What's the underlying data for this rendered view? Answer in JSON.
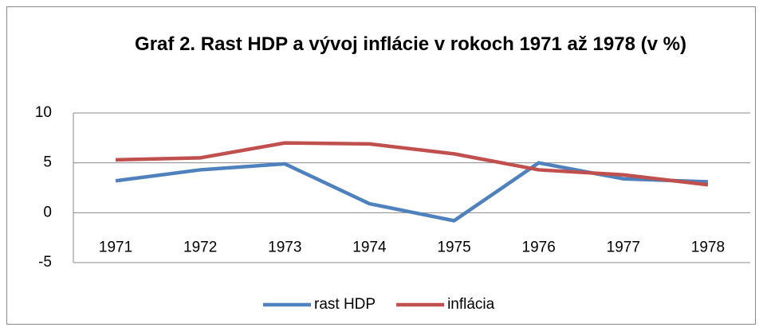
{
  "chart_data": {
    "type": "line",
    "title": "Graf 2. Rast HDP a vývoj inflácie v rokoch 1971 až 1978 (v %)",
    "categories": [
      "1971",
      "1972",
      "1973",
      "1974",
      "1975",
      "1976",
      "1977",
      "1978"
    ],
    "series": [
      {
        "name": "rast HDP",
        "color": "#4f81bd",
        "values": [
          3.2,
          4.3,
          4.9,
          0.9,
          -0.8,
          5.0,
          3.4,
          3.1
        ]
      },
      {
        "name": "inflácia",
        "color": "#c0504d",
        "values": [
          5.3,
          5.5,
          7.0,
          6.9,
          5.9,
          4.3,
          3.8,
          2.8
        ]
      }
    ],
    "ylim": [
      -5,
      10
    ],
    "yticks": [
      -5,
      0,
      5,
      10
    ],
    "grid": true,
    "legend": "bottom"
  }
}
